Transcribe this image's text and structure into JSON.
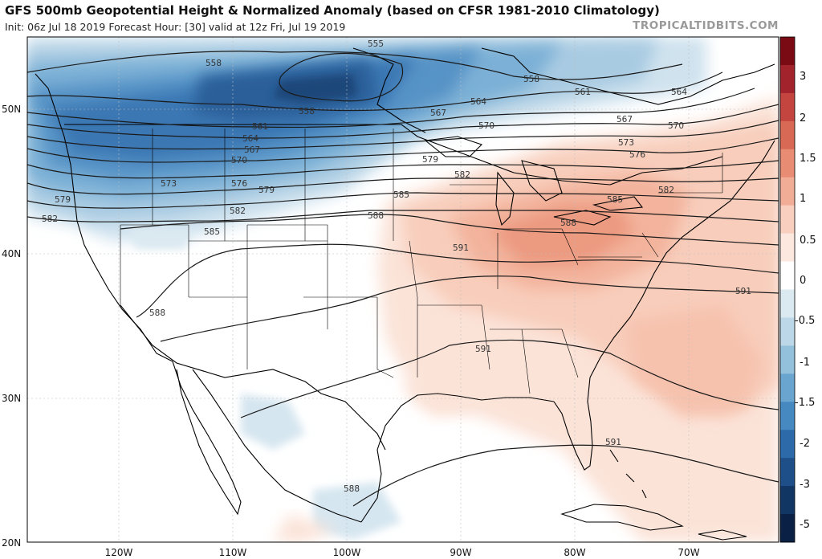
{
  "header": {
    "title": "GFS 500mb Geopotential Height & Normalized Anomaly (based on CFSR 1981-2010 Climatology)",
    "subtitle": "Init: 06z Jul 18 2019   Forecast Hour: [30]   valid at 12z Fri, Jul 19 2019",
    "credit": "TROPICALTIDBITS.COM"
  },
  "map": {
    "projection": "lat-lon",
    "lon_range": [
      -128,
      -62
    ],
    "lat_range": [
      20,
      55
    ],
    "lat_ticks": [
      {
        "value": 50,
        "label": "50N"
      },
      {
        "value": 40,
        "label": "40N"
      },
      {
        "value": 30,
        "label": "30N"
      },
      {
        "value": 20,
        "label": "20N"
      }
    ],
    "lon_ticks": [
      {
        "value": -120,
        "label": "120W"
      },
      {
        "value": -110,
        "label": "110W"
      },
      {
        "value": -100,
        "label": "100W"
      },
      {
        "value": -90,
        "label": "90W"
      },
      {
        "value": -80,
        "label": "80W"
      },
      {
        "value": -70,
        "label": "70W"
      }
    ],
    "contour_labels": [
      "555",
      "558",
      "558",
      "558",
      "561",
      "561",
      "564",
      "564",
      "564",
      "567",
      "567",
      "567",
      "570",
      "570",
      "570",
      "573",
      "573",
      "576",
      "576",
      "579",
      "579",
      "579",
      "582",
      "582",
      "582",
      "582",
      "585",
      "585",
      "585",
      "588",
      "588",
      "588",
      "588",
      "591",
      "591",
      "591",
      "591"
    ]
  },
  "colorbar": {
    "labels": [
      "3",
      "2",
      "1.5",
      "1",
      "0.5",
      "0",
      "-0.5",
      "-1",
      "-1.5",
      "-2",
      "-3",
      "-5"
    ],
    "colors": [
      "#7a0a14",
      "#a3232c",
      "#c4443f",
      "#d86a55",
      "#e88c74",
      "#f2ad97",
      "#f9cfbf",
      "#fce8df",
      "#ffffff",
      "#dbe9f1",
      "#bcd7e7",
      "#93c1dc",
      "#6aa5cf",
      "#4688c0",
      "#2d6aa9",
      "#1f4f88",
      "#123663",
      "#0a2145"
    ]
  },
  "colors": {
    "land_outline": "#000000",
    "contour": "#1a1a1a",
    "background": "#ffffff"
  }
}
